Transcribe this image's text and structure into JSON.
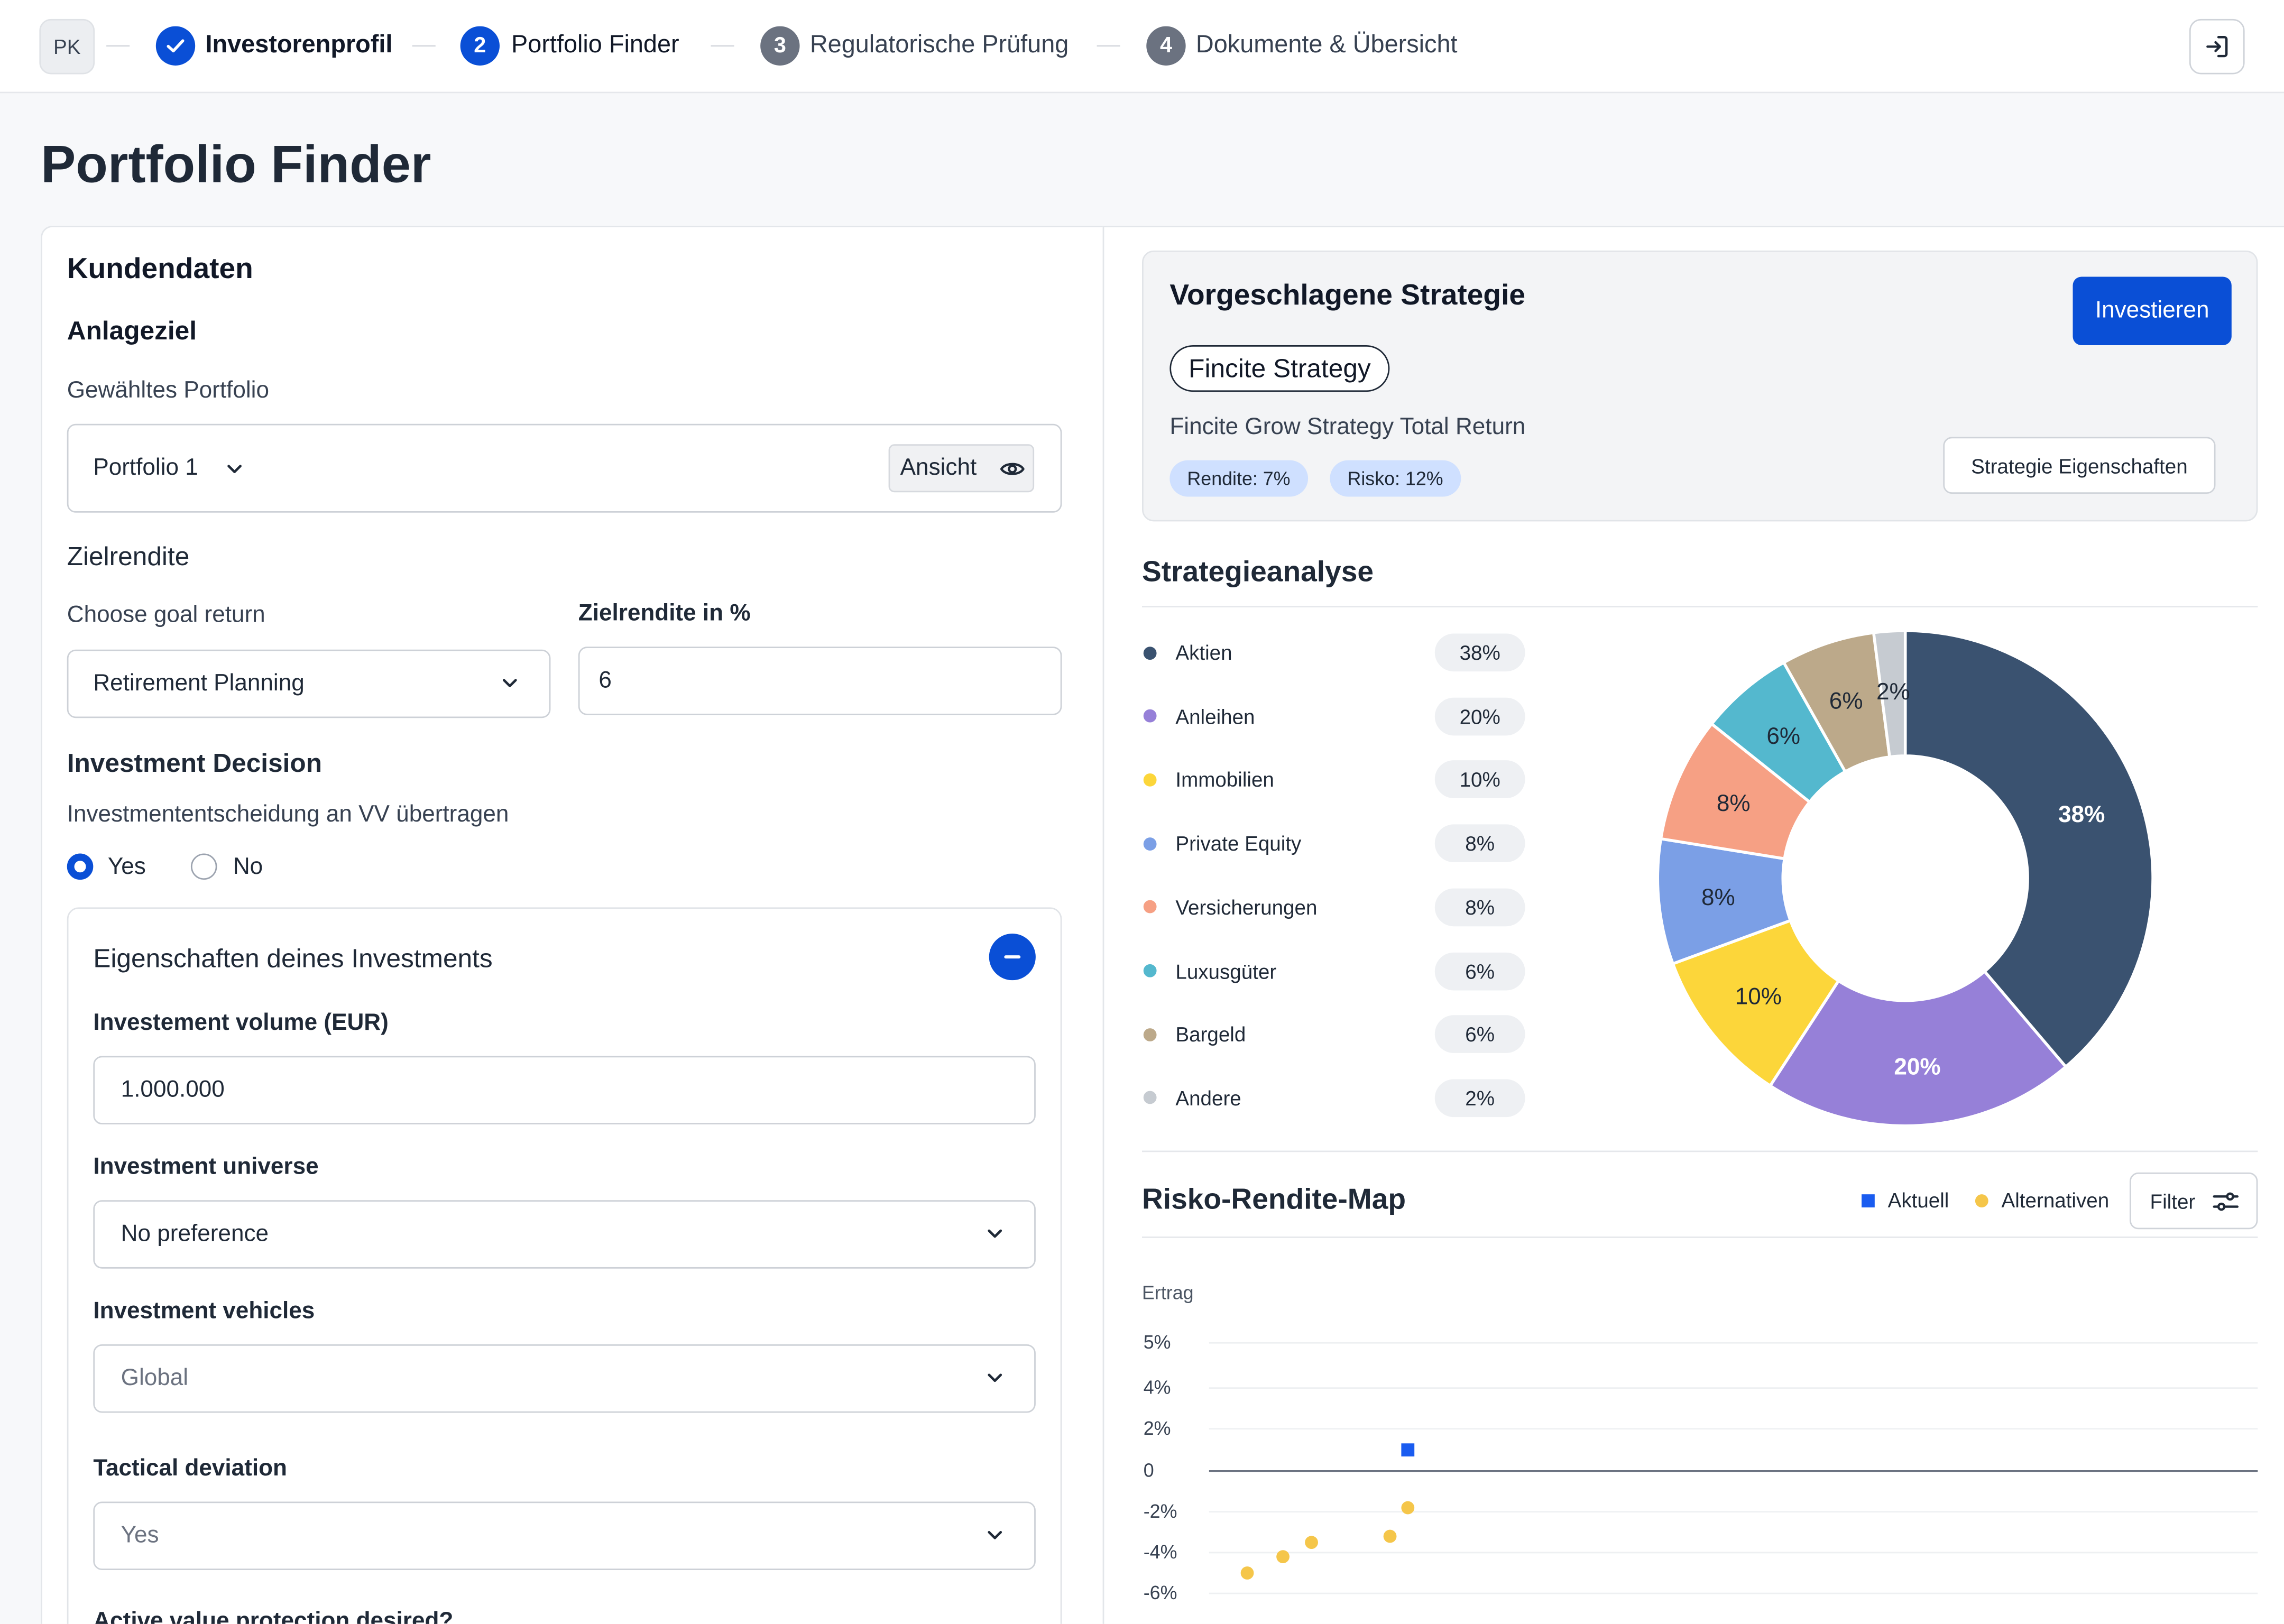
{
  "colors": {
    "primary": "#0a4fd6",
    "step_done": "#0a4fd6",
    "step_inactive": "#6b7280",
    "aktuell": "#1a5cf0",
    "alternativen": "#f5c64a"
  },
  "header": {
    "avatar": "PK",
    "steps": [
      {
        "number": "",
        "label": "Investorenprofil",
        "state": "done"
      },
      {
        "number": "2",
        "label": "Portfolio Finder",
        "state": "active"
      },
      {
        "number": "3",
        "label": "Regulatorische Prüfung",
        "state": "upcoming"
      },
      {
        "number": "4",
        "label": "Dokumente & Übersicht",
        "state": "upcoming"
      }
    ],
    "logout_icon": "logout-icon"
  },
  "page": {
    "title": "Portfolio Finder"
  },
  "left": {
    "section_title": "Kundendaten",
    "anlageziel": {
      "title": "Anlageziel",
      "portfolio_label": "Gewähltes Portfolio",
      "portfolio_value": "Portfolio 1",
      "view_button": "Ansicht"
    },
    "zielrendite": {
      "title": "Zielrendite",
      "goal_label": "Choose goal return",
      "goal_value": "Retirement Planning",
      "percent_label": "Zielrendite in %",
      "percent_value": "6"
    },
    "decision": {
      "title": "Investment Decision",
      "question": "Investmententscheidung an VV übertragen",
      "options": [
        "Yes",
        "No"
      ],
      "selected": "Yes"
    },
    "properties": {
      "title": "Eigenschaften deines Investments",
      "volume_label": "Investement volume (EUR)",
      "volume_value": "1.000.000",
      "universe_label": "Investment universe",
      "universe_value": "No preference",
      "vehicles_label": "Investment vehicles",
      "vehicles_value": "Global",
      "tactical_label": "Tactical deviation",
      "tactical_value": "Yes",
      "protection_label": "Active value protection desired?"
    }
  },
  "strategy": {
    "title": "Vorgeschlagene Strategie",
    "invest_button": "Investieren",
    "tag": "Fincite Strategy",
    "name": "Fincite Grow Strategy Total Return",
    "rendite": "Rendite: 7%",
    "risiko": "Risko: 12%",
    "properties_button": "Strategie Eigenschaften"
  },
  "analysis": {
    "title": "Strategieanalyse",
    "items": [
      {
        "label": "Aktien",
        "pct": "38%",
        "value": 38,
        "color": "#3a5270"
      },
      {
        "label": "Anleihen",
        "pct": "20%",
        "value": 20,
        "color": "#9680d8"
      },
      {
        "label": "Immobilien",
        "pct": "10%",
        "value": 10,
        "color": "#fcd63a"
      },
      {
        "label": "Private Equity",
        "pct": "8%",
        "value": 8,
        "color": "#7b9fe6"
      },
      {
        "label": "Versicherungen",
        "pct": "8%",
        "value": 8,
        "color": "#f6a084"
      },
      {
        "label": "Luxusgüter",
        "pct": "6%",
        "value": 6,
        "color": "#54b8ce"
      },
      {
        "label": "Bargeld",
        "pct": "6%",
        "value": 6,
        "color": "#bca98a"
      },
      {
        "label": "Andere",
        "pct": "2%",
        "value": 2,
        "color": "#c6cbd1"
      }
    ]
  },
  "riskmap": {
    "title": "Risko-Rendite-Map",
    "legend_current": "Aktuell",
    "legend_alternatives": "Alternativen",
    "filter_button": "Filter",
    "ylabel": "Ertrag",
    "yticks": [
      "5%",
      "4%",
      "2%",
      "0",
      "-2%",
      "-4%",
      "-6%"
    ]
  },
  "chart_data": [
    {
      "type": "pie",
      "title": "Strategieanalyse",
      "categories": [
        "Aktien",
        "Anleihen",
        "Immobilien",
        "Private Equity",
        "Versicherungen",
        "Luxusgüter",
        "Bargeld",
        "Andere"
      ],
      "values": [
        38,
        20,
        10,
        8,
        8,
        6,
        6,
        2
      ]
    },
    {
      "type": "scatter",
      "title": "Risko-Rendite-Map",
      "ylabel": "Ertrag",
      "ylim": [
        -6,
        5
      ],
      "series": [
        {
          "name": "Aktuell",
          "points": [
            {
              "x": 5,
              "y": 1
            }
          ]
        },
        {
          "name": "Alternativen",
          "points": [
            {
              "x": 0.5,
              "y": -5
            },
            {
              "x": 1.5,
              "y": -4.2
            },
            {
              "x": 2.3,
              "y": -3.5
            },
            {
              "x": 4.5,
              "y": -3.2
            },
            {
              "x": 5,
              "y": -1.8
            }
          ]
        }
      ]
    }
  ]
}
